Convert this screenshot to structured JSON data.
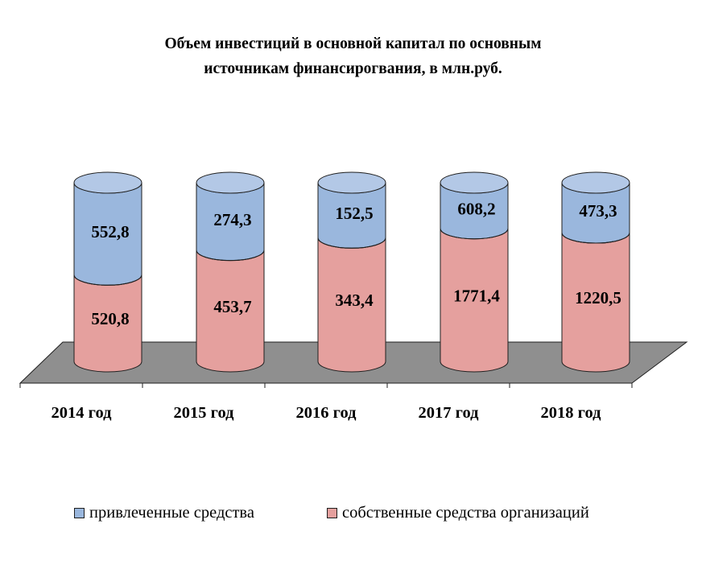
{
  "title_lines": [
    "Объем инвестиций в основной капитал по основным",
    "источникам финансирогвания, в млн.руб."
  ],
  "colors": {
    "attracted": "#9ab7dd",
    "attracted_top": "#b3c8e6",
    "own": "#e5a09e",
    "floor": "#8f8f8f",
    "outline": "#1f1f1f"
  },
  "chart_data": {
    "type": "bar",
    "stacked": true,
    "stack_mode": "percent",
    "shape": "cylinder",
    "title": "Объем инвестиций в основной капитал по основным источникам финансирогвания, в млн.руб.",
    "categories": [
      "2014 год",
      "2015 год",
      "2016 год",
      "2017 год",
      "2018 год"
    ],
    "series": [
      {
        "name": "собственные средства организаций",
        "color": "#e5a09e",
        "values": [
          520.8,
          453.7,
          343.4,
          1771.4,
          1220.5
        ],
        "labels": [
          "520,8",
          "453,7",
          "343,4",
          "1771,4",
          "1220,5"
        ]
      },
      {
        "name": "привлеченные средства",
        "color": "#9ab7dd",
        "values": [
          552.8,
          274.3,
          152.5,
          608.2,
          473.3
        ],
        "labels": [
          "552,8",
          "274,3",
          "152,5",
          "608,2",
          "473,3"
        ]
      }
    ],
    "legend": [
      "привлеченные средства",
      "собственные средства организаций"
    ],
    "legend_position": "bottom",
    "gridlines": false
  }
}
